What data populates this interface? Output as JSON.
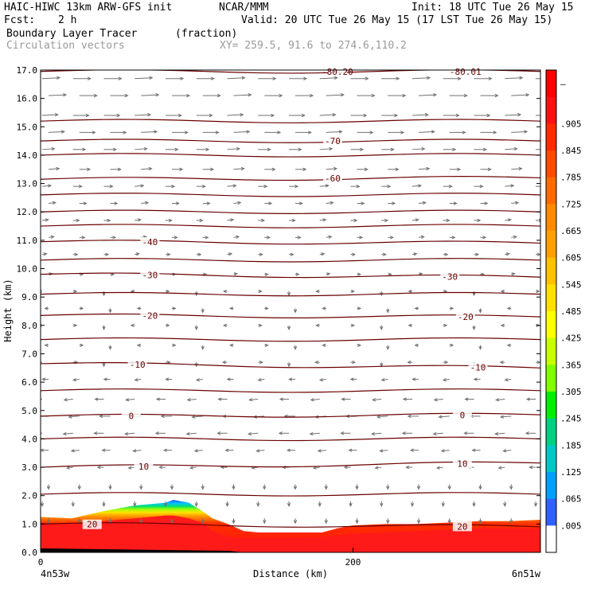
{
  "header": {
    "model": "HAIC-HIWC 13km ARW-GFS init",
    "org": "NCAR/MMM",
    "init": "Init: 18 UTC Tue 26 May 15",
    "fcst_label": "Fcst:",
    "fcst_value": "2 h",
    "valid": "Valid: 20 UTC Tue 26 May 15 (17 LST Tue 26 May 15)",
    "field_name": "Boundary Layer Tracer",
    "field_units": "(fraction)",
    "overlay_name": "Circulation vectors",
    "xy_info": "XY= 259.5, 91.6 to 274.6,110.2"
  },
  "colors": {
    "isotherm": "#6a0000",
    "vector": "#707070",
    "frame": "#000000"
  },
  "chart_data": {
    "type": "heatmap",
    "title": "Boundary Layer Tracer",
    "units": "fraction",
    "xlabel": "Distance (km)",
    "ylabel": "Height (km)",
    "x_left_label": "4n53w",
    "x_right_label": "6n51w",
    "xlim": [
      0,
      320
    ],
    "ylim": [
      0,
      17
    ],
    "x_ticks": [
      0,
      200
    ],
    "x_tick_labels": [
      "0",
      "200"
    ],
    "y_ticks": [
      0,
      1,
      2,
      3,
      4,
      5,
      6,
      7,
      8,
      9,
      10,
      11,
      12,
      13,
      14,
      15,
      16,
      17
    ],
    "y_tick_labels": [
      "0.0",
      "1.0",
      "2.0",
      "3.0",
      "4.0",
      "5.0",
      "6.0",
      "7.0",
      "8.0",
      "9.0",
      "10.0",
      "11.0",
      "12.0",
      "13.0",
      "14.0",
      "15.0",
      "16.0",
      "17.0"
    ],
    "colorbar": {
      "labels": [
        "–",
        ".905",
        ".845",
        ".785",
        ".725",
        ".665",
        ".605",
        ".545",
        ".485",
        ".425",
        ".365",
        ".305",
        ".245",
        ".185",
        ".125",
        ".065",
        ".005"
      ],
      "colors": [
        "#ff0000",
        "#ff1010",
        "#ff2a00",
        "#ff4a00",
        "#ff6a00",
        "#ff8a00",
        "#ffa000",
        "#ffc000",
        "#ffe000",
        "#ffff00",
        "#c8ff00",
        "#80ff00",
        "#00f000",
        "#00d080",
        "#00c8c8",
        "#00a0ff",
        "#3060ff",
        "#ffffff"
      ]
    },
    "tracer_envelope": {
      "x": [
        0,
        20,
        40,
        60,
        70,
        80,
        85,
        95,
        105,
        110,
        120,
        130,
        140,
        160,
        180,
        190,
        200,
        220,
        240,
        260,
        280,
        300,
        320
      ],
      "top": [
        1.25,
        1.2,
        1.45,
        1.65,
        1.7,
        1.75,
        1.85,
        1.75,
        1.4,
        1.2,
        1.0,
        0.75,
        0.7,
        0.7,
        0.7,
        0.85,
        0.95,
        1.0,
        1.0,
        1.05,
        1.1,
        1.1,
        1.15
      ],
      "red_top": [
        1.05,
        1.0,
        1.1,
        1.2,
        1.25,
        1.3,
        1.3,
        1.2,
        1.0,
        0.75,
        0.55,
        0.5,
        0.5,
        0.5,
        0.55,
        0.6,
        0.65,
        0.7,
        0.75,
        0.8,
        0.85,
        0.85,
        0.85
      ]
    },
    "isotherms": [
      {
        "label": "-70",
        "y_left": 14.5,
        "y_right": 14.5,
        "label_x": 187
      },
      {
        "label": "-60",
        "y_left": 13.15,
        "y_right": 13.2,
        "label_x": 187
      },
      {
        "label": "-40",
        "y_left": 10.95,
        "y_right": 10.9,
        "label_x": 70
      },
      {
        "label": "-30",
        "y_left": 9.8,
        "y_right": 9.7,
        "label_x": 70
      },
      {
        "label": "-30",
        "y_left": 9.8,
        "y_right": 9.7,
        "label_x": 262
      },
      {
        "label": "-20",
        "y_left": 8.35,
        "y_right": 8.3,
        "label_x": 70
      },
      {
        "label": "-20",
        "y_left": 8.35,
        "y_right": 8.3,
        "label_x": 272
      },
      {
        "label": "-10",
        "y_left": 6.65,
        "y_right": 6.5,
        "label_x": 62
      },
      {
        "label": "-10",
        "y_left": 6.65,
        "y_right": 6.5,
        "label_x": 280
      },
      {
        "label": "0",
        "y_left": 4.8,
        "y_right": 4.85,
        "label_x": 58
      },
      {
        "label": "0",
        "y_left": 4.8,
        "y_right": 4.85,
        "label_x": 270
      },
      {
        "label": "10",
        "y_left": 3.0,
        "y_right": 3.15,
        "label_x": 66
      },
      {
        "label": "10",
        "y_left": 3.0,
        "y_right": 3.15,
        "label_x": 270
      },
      {
        "label": "20",
        "y_left": 1.0,
        "y_right": 0.9,
        "label_x": 33
      },
      {
        "label": "20",
        "y_left": 1.0,
        "y_right": 0.9,
        "label_x": 270
      },
      {
        "label": "-80.20",
        "y_left": 16.95,
        "y_right": 16.95,
        "label_x": 190
      },
      {
        "label": "-80.01",
        "y_left": 16.95,
        "y_right": 16.95,
        "label_x": 272
      }
    ],
    "plain_contours": [
      15.2,
      14.0,
      12.6,
      12.0,
      11.5,
      10.3,
      9.1,
      7.5,
      5.7,
      4.0,
      2.05
    ],
    "wind_rows": [
      {
        "z": 16.7,
        "dir": "east",
        "len": 1.0
      },
      {
        "z": 16.1,
        "dir": "east",
        "len": 1.0
      },
      {
        "z": 15.4,
        "dir": "east",
        "len": 0.9
      },
      {
        "z": 14.8,
        "dir": "east",
        "len": 0.9
      },
      {
        "z": 14.2,
        "dir": "east",
        "len": 0.7
      },
      {
        "z": 13.5,
        "dir": "east",
        "len": 0.6
      },
      {
        "z": 12.9,
        "dir": "east",
        "len": 0.5
      },
      {
        "z": 12.3,
        "dir": "east",
        "len": 0.4
      },
      {
        "z": 11.7,
        "dir": "east",
        "len": 0.35
      },
      {
        "z": 11.1,
        "dir": "east",
        "len": 0.3
      },
      {
        "z": 10.5,
        "dir": "east",
        "len": 0.25
      },
      {
        "z": 9.8,
        "dir": "east",
        "len": 0.2
      },
      {
        "z": 9.2,
        "dir": "mixed",
        "len": 0.2
      },
      {
        "z": 8.6,
        "dir": "mixed",
        "len": 0.2
      },
      {
        "z": 8.0,
        "dir": "mixed",
        "len": 0.2
      },
      {
        "z": 7.3,
        "dir": "mixed",
        "len": 0.2
      },
      {
        "z": 6.7,
        "dir": "mixed",
        "len": 0.25
      },
      {
        "z": 6.1,
        "dir": "west",
        "len": 0.35
      },
      {
        "z": 5.4,
        "dir": "west",
        "len": 0.5
      },
      {
        "z": 4.8,
        "dir": "west",
        "len": 0.6
      },
      {
        "z": 4.2,
        "dir": "west",
        "len": 0.55
      },
      {
        "z": 3.6,
        "dir": "west",
        "len": 0.45
      },
      {
        "z": 3.0,
        "dir": "west",
        "len": 0.35
      },
      {
        "z": 2.4,
        "dir": "down",
        "len": 0.25
      },
      {
        "z": 1.8,
        "dir": "down",
        "len": 0.25
      },
      {
        "z": 1.2,
        "dir": "down",
        "len": 0.2
      }
    ]
  }
}
